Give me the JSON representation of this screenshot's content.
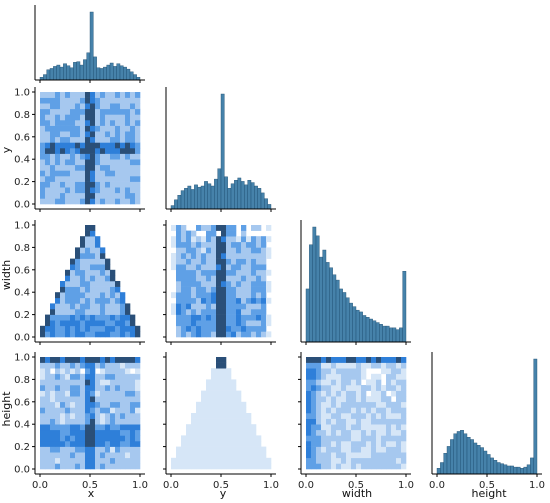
{
  "chart_data": {
    "type": "heatmap",
    "subtype": "pairplot-corner",
    "variables": [
      "x",
      "y",
      "width",
      "height"
    ],
    "axis_labels": {
      "x_bottom": [
        "x",
        "y",
        "width",
        "height"
      ],
      "y_left": [
        "y",
        "width",
        "height"
      ]
    },
    "axis_range": [
      0.0,
      1.0
    ],
    "x_ticks": [
      "0.0",
      "0.5",
      "1.0"
    ],
    "y_ticks": [
      "0.0",
      "0.2",
      "0.4",
      "0.6",
      "0.8",
      "1.0"
    ],
    "bar_color": "#3274a1",
    "heat_colors": [
      "#d6e6f7",
      "#a6c8ef",
      "#5fa0e6",
      "#2e7fd9",
      "#2a4f78"
    ],
    "diagonal": [
      {
        "variable": "x",
        "bins": [
          0.02,
          0.06,
          0.1,
          0.13,
          0.17,
          0.2,
          0.24,
          0.27,
          0.3,
          0.33,
          0.36,
          0.4,
          0.43,
          0.46,
          0.49,
          0.51,
          0.54,
          0.58,
          0.61,
          0.64,
          0.67,
          0.7,
          0.73,
          0.76,
          0.8,
          0.83,
          0.86,
          0.9,
          0.93,
          0.97
        ],
        "counts": [
          4,
          8,
          15,
          17,
          20,
          22,
          19,
          24,
          21,
          18,
          26,
          27,
          22,
          30,
          40,
          100,
          34,
          18,
          17,
          19,
          22,
          25,
          20,
          24,
          21,
          19,
          16,
          12,
          8,
          4
        ]
      },
      {
        "variable": "y",
        "bins": [
          0.02,
          0.06,
          0.1,
          0.13,
          0.17,
          0.2,
          0.24,
          0.27,
          0.3,
          0.33,
          0.36,
          0.4,
          0.43,
          0.46,
          0.49,
          0.51,
          0.54,
          0.58,
          0.61,
          0.64,
          0.67,
          0.7,
          0.73,
          0.76,
          0.8,
          0.83,
          0.86,
          0.9,
          0.93,
          0.97
        ],
        "counts": [
          3,
          8,
          12,
          16,
          18,
          20,
          17,
          21,
          19,
          20,
          24,
          22,
          20,
          26,
          35,
          100,
          28,
          18,
          22,
          25,
          27,
          24,
          21,
          25,
          23,
          20,
          18,
          14,
          9,
          4
        ]
      },
      {
        "variable": "width",
        "bins": [
          0.02,
          0.06,
          0.1,
          0.13,
          0.17,
          0.2,
          0.24,
          0.27,
          0.3,
          0.33,
          0.36,
          0.4,
          0.43,
          0.46,
          0.49,
          0.51,
          0.54,
          0.58,
          0.61,
          0.64,
          0.67,
          0.7,
          0.73,
          0.76,
          0.8,
          0.83,
          0.86,
          0.9,
          0.93,
          0.97
        ],
        "counts": [
          30,
          55,
          65,
          60,
          48,
          52,
          45,
          42,
          38,
          35,
          30,
          28,
          25,
          22,
          20,
          18,
          17,
          15,
          14,
          13,
          12,
          11,
          10,
          9,
          9,
          8,
          8,
          7,
          8,
          40
        ]
      },
      {
        "variable": "height",
        "bins": [
          0.02,
          0.06,
          0.1,
          0.13,
          0.17,
          0.2,
          0.24,
          0.27,
          0.3,
          0.33,
          0.36,
          0.4,
          0.43,
          0.46,
          0.49,
          0.51,
          0.54,
          0.58,
          0.61,
          0.64,
          0.67,
          0.7,
          0.73,
          0.76,
          0.8,
          0.83,
          0.86,
          0.9,
          0.93,
          0.97
        ],
        "counts": [
          5,
          10,
          18,
          24,
          30,
          35,
          37,
          38,
          35,
          32,
          30,
          27,
          25,
          23,
          20,
          17,
          14,
          12,
          10,
          9,
          8,
          7,
          7,
          6,
          6,
          5,
          6,
          8,
          14,
          100
        ]
      }
    ],
    "joint": [
      {
        "x": "x",
        "y": "y",
        "row": 1,
        "col": 0,
        "pattern": "cross_center",
        "support": "uniform"
      },
      {
        "x": "x",
        "y": "width",
        "row": 2,
        "col": 0,
        "pattern": "triangle_edges",
        "support": "triangle",
        "peak": [
          0.5,
          1.0
        ]
      },
      {
        "x": "y",
        "y": "width",
        "row": 2,
        "col": 1,
        "pattern": "vertical_center_lowbias",
        "support": "uniform"
      },
      {
        "x": "x",
        "y": "height",
        "row": 3,
        "col": 0,
        "pattern": "cross_center_topband",
        "support": "uniform"
      },
      {
        "x": "y",
        "y": "height",
        "row": 3,
        "col": 1,
        "pattern": "triangle_fill",
        "support": "triangle",
        "peak": [
          0.5,
          1.0
        ]
      },
      {
        "x": "width",
        "y": "height",
        "row": 3,
        "col": 2,
        "pattern": "lowwidth_topband",
        "support": "uniform"
      }
    ]
  }
}
